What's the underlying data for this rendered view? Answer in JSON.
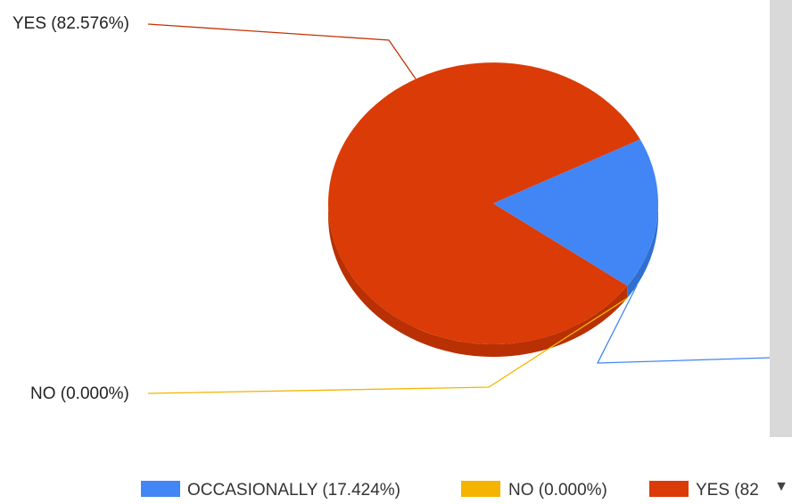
{
  "chart_data": {
    "type": "pie",
    "is_3d": true,
    "slices": [
      {
        "label": "OCCASIONALLY",
        "value": 17.424,
        "color": "#4285f4",
        "legend_text": "OCCASIONALLY (17.424%)",
        "callout_text": ""
      },
      {
        "label": "NO",
        "value": 0.0,
        "color": "#f4b400",
        "legend_text": "NO (0.000%)",
        "callout_text": "NO (0.000%)"
      },
      {
        "label": "YES",
        "value": 82.576,
        "color": "#db3b06",
        "legend_text": "YES (82",
        "callout_text": "YES (82.576%)"
      }
    ],
    "legend_position": "bottom",
    "title": ""
  },
  "icons": {
    "legend_scroll": "triangle-down-icon"
  },
  "colors": {
    "yes_side": "#b83003",
    "occ_side": "#2f6fd0",
    "no_leader": "#f4b400",
    "yes_leader": "#c23304",
    "occ_leader": "#4285f4"
  }
}
